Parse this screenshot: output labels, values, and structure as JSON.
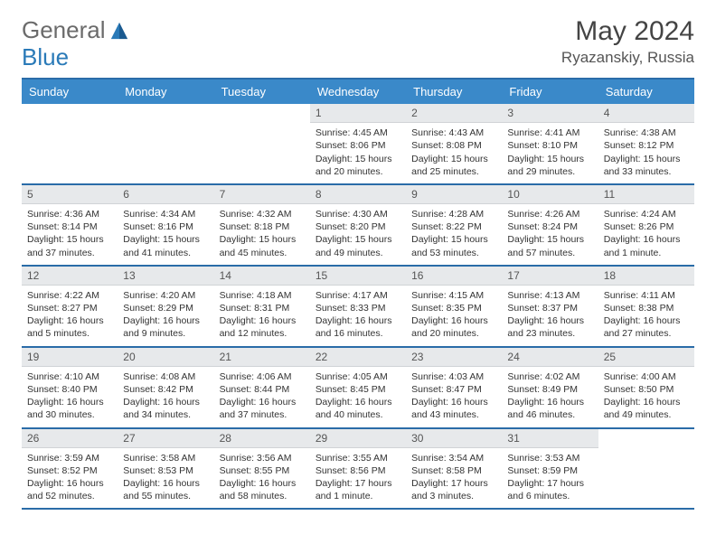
{
  "logo": {
    "general": "General",
    "blue": "Blue",
    "icon_color": "#2a7ab8"
  },
  "title": "May 2024",
  "location": "Ryazanskiy, Russia",
  "colors": {
    "header_bg": "#3a89c9",
    "header_text": "#ffffff",
    "rule": "#2a6ca8",
    "daynum_bg": "#e7e9eb",
    "text": "#333333",
    "background": "#ffffff"
  },
  "day_headers": [
    "Sunday",
    "Monday",
    "Tuesday",
    "Wednesday",
    "Thursday",
    "Friday",
    "Saturday"
  ],
  "weeks": [
    [
      {
        "n": "",
        "sr": "",
        "ss": "",
        "dl": ""
      },
      {
        "n": "",
        "sr": "",
        "ss": "",
        "dl": ""
      },
      {
        "n": "",
        "sr": "",
        "ss": "",
        "dl": ""
      },
      {
        "n": "1",
        "sr": "Sunrise: 4:45 AM",
        "ss": "Sunset: 8:06 PM",
        "dl": "Daylight: 15 hours and 20 minutes."
      },
      {
        "n": "2",
        "sr": "Sunrise: 4:43 AM",
        "ss": "Sunset: 8:08 PM",
        "dl": "Daylight: 15 hours and 25 minutes."
      },
      {
        "n": "3",
        "sr": "Sunrise: 4:41 AM",
        "ss": "Sunset: 8:10 PM",
        "dl": "Daylight: 15 hours and 29 minutes."
      },
      {
        "n": "4",
        "sr": "Sunrise: 4:38 AM",
        "ss": "Sunset: 8:12 PM",
        "dl": "Daylight: 15 hours and 33 minutes."
      }
    ],
    [
      {
        "n": "5",
        "sr": "Sunrise: 4:36 AM",
        "ss": "Sunset: 8:14 PM",
        "dl": "Daylight: 15 hours and 37 minutes."
      },
      {
        "n": "6",
        "sr": "Sunrise: 4:34 AM",
        "ss": "Sunset: 8:16 PM",
        "dl": "Daylight: 15 hours and 41 minutes."
      },
      {
        "n": "7",
        "sr": "Sunrise: 4:32 AM",
        "ss": "Sunset: 8:18 PM",
        "dl": "Daylight: 15 hours and 45 minutes."
      },
      {
        "n": "8",
        "sr": "Sunrise: 4:30 AM",
        "ss": "Sunset: 8:20 PM",
        "dl": "Daylight: 15 hours and 49 minutes."
      },
      {
        "n": "9",
        "sr": "Sunrise: 4:28 AM",
        "ss": "Sunset: 8:22 PM",
        "dl": "Daylight: 15 hours and 53 minutes."
      },
      {
        "n": "10",
        "sr": "Sunrise: 4:26 AM",
        "ss": "Sunset: 8:24 PM",
        "dl": "Daylight: 15 hours and 57 minutes."
      },
      {
        "n": "11",
        "sr": "Sunrise: 4:24 AM",
        "ss": "Sunset: 8:26 PM",
        "dl": "Daylight: 16 hours and 1 minute."
      }
    ],
    [
      {
        "n": "12",
        "sr": "Sunrise: 4:22 AM",
        "ss": "Sunset: 8:27 PM",
        "dl": "Daylight: 16 hours and 5 minutes."
      },
      {
        "n": "13",
        "sr": "Sunrise: 4:20 AM",
        "ss": "Sunset: 8:29 PM",
        "dl": "Daylight: 16 hours and 9 minutes."
      },
      {
        "n": "14",
        "sr": "Sunrise: 4:18 AM",
        "ss": "Sunset: 8:31 PM",
        "dl": "Daylight: 16 hours and 12 minutes."
      },
      {
        "n": "15",
        "sr": "Sunrise: 4:17 AM",
        "ss": "Sunset: 8:33 PM",
        "dl": "Daylight: 16 hours and 16 minutes."
      },
      {
        "n": "16",
        "sr": "Sunrise: 4:15 AM",
        "ss": "Sunset: 8:35 PM",
        "dl": "Daylight: 16 hours and 20 minutes."
      },
      {
        "n": "17",
        "sr": "Sunrise: 4:13 AM",
        "ss": "Sunset: 8:37 PM",
        "dl": "Daylight: 16 hours and 23 minutes."
      },
      {
        "n": "18",
        "sr": "Sunrise: 4:11 AM",
        "ss": "Sunset: 8:38 PM",
        "dl": "Daylight: 16 hours and 27 minutes."
      }
    ],
    [
      {
        "n": "19",
        "sr": "Sunrise: 4:10 AM",
        "ss": "Sunset: 8:40 PM",
        "dl": "Daylight: 16 hours and 30 minutes."
      },
      {
        "n": "20",
        "sr": "Sunrise: 4:08 AM",
        "ss": "Sunset: 8:42 PM",
        "dl": "Daylight: 16 hours and 34 minutes."
      },
      {
        "n": "21",
        "sr": "Sunrise: 4:06 AM",
        "ss": "Sunset: 8:44 PM",
        "dl": "Daylight: 16 hours and 37 minutes."
      },
      {
        "n": "22",
        "sr": "Sunrise: 4:05 AM",
        "ss": "Sunset: 8:45 PM",
        "dl": "Daylight: 16 hours and 40 minutes."
      },
      {
        "n": "23",
        "sr": "Sunrise: 4:03 AM",
        "ss": "Sunset: 8:47 PM",
        "dl": "Daylight: 16 hours and 43 minutes."
      },
      {
        "n": "24",
        "sr": "Sunrise: 4:02 AM",
        "ss": "Sunset: 8:49 PM",
        "dl": "Daylight: 16 hours and 46 minutes."
      },
      {
        "n": "25",
        "sr": "Sunrise: 4:00 AM",
        "ss": "Sunset: 8:50 PM",
        "dl": "Daylight: 16 hours and 49 minutes."
      }
    ],
    [
      {
        "n": "26",
        "sr": "Sunrise: 3:59 AM",
        "ss": "Sunset: 8:52 PM",
        "dl": "Daylight: 16 hours and 52 minutes."
      },
      {
        "n": "27",
        "sr": "Sunrise: 3:58 AM",
        "ss": "Sunset: 8:53 PM",
        "dl": "Daylight: 16 hours and 55 minutes."
      },
      {
        "n": "28",
        "sr": "Sunrise: 3:56 AM",
        "ss": "Sunset: 8:55 PM",
        "dl": "Daylight: 16 hours and 58 minutes."
      },
      {
        "n": "29",
        "sr": "Sunrise: 3:55 AM",
        "ss": "Sunset: 8:56 PM",
        "dl": "Daylight: 17 hours and 1 minute."
      },
      {
        "n": "30",
        "sr": "Sunrise: 3:54 AM",
        "ss": "Sunset: 8:58 PM",
        "dl": "Daylight: 17 hours and 3 minutes."
      },
      {
        "n": "31",
        "sr": "Sunrise: 3:53 AM",
        "ss": "Sunset: 8:59 PM",
        "dl": "Daylight: 17 hours and 6 minutes."
      },
      {
        "n": "",
        "sr": "",
        "ss": "",
        "dl": ""
      }
    ]
  ]
}
